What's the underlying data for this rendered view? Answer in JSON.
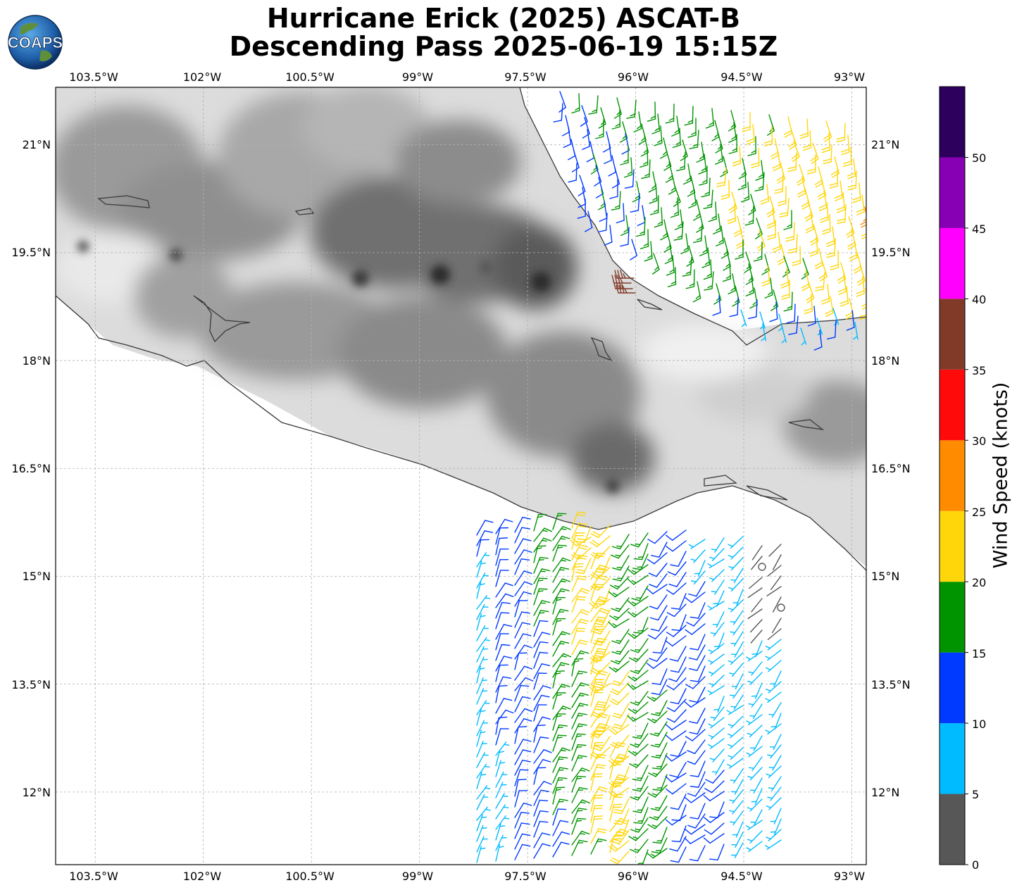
{
  "title": {
    "line1": "Hurricane Erick (2025) ASCAT-B",
    "line2": "Descending Pass 2025-06-19 15:15Z"
  },
  "logo": {
    "text": "COAPS",
    "icon": "globe-icon"
  },
  "map": {
    "lon_labels": [
      "103.5°W",
      "102°W",
      "100.5°W",
      "99°W",
      "97.5°W",
      "96°W",
      "94.5°W",
      "93°W"
    ],
    "lat_labels": [
      "21°N",
      "19.5°N",
      "18°N",
      "16.5°N",
      "15°N",
      "13.5°N",
      "12°N"
    ],
    "extent": {
      "lon_min": -104.05,
      "lon_max": -92.8,
      "lat_min": 10.99,
      "lat_max": 21.8
    },
    "grid": "dashed",
    "background": "terrain-grayscale"
  },
  "colorbar": {
    "label": "Wind Speed (knots)",
    "ticks": [
      "0",
      "5",
      "10",
      "15",
      "20",
      "25",
      "30",
      "35",
      "40",
      "45",
      "50"
    ],
    "bins": [
      {
        "from": 0,
        "to": 5,
        "color": "#575757"
      },
      {
        "from": 5,
        "to": 10,
        "color": "#00bbff"
      },
      {
        "from": 10,
        "to": 15,
        "color": "#0039ff"
      },
      {
        "from": 15,
        "to": 20,
        "color": "#009400"
      },
      {
        "from": 20,
        "to": 25,
        "color": "#ffd60a"
      },
      {
        "from": 25,
        "to": 30,
        "color": "#ff8c00"
      },
      {
        "from": 30,
        "to": 35,
        "color": "#ff0a0a"
      },
      {
        "from": 35,
        "to": 40,
        "color": "#823a28"
      },
      {
        "from": 40,
        "to": 45,
        "color": "#ff00ff"
      },
      {
        "from": 45,
        "to": 50,
        "color": "#8800b4"
      },
      {
        "from": 50,
        "to": 55,
        "color": "#2e005e"
      }
    ]
  }
}
